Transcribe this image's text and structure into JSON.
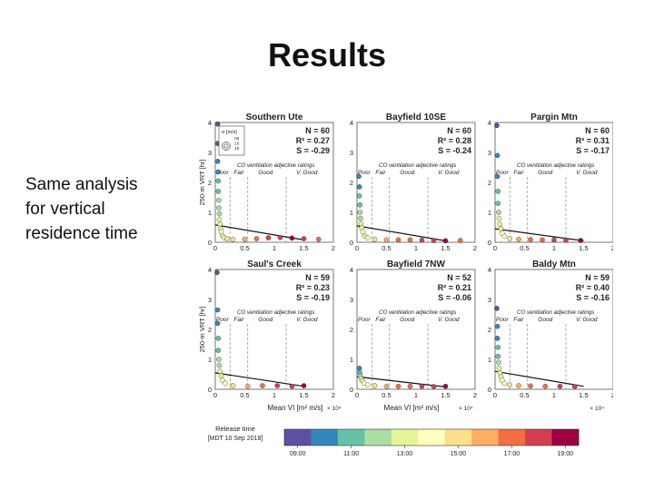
{
  "slide": {
    "title": "Results",
    "side_text": [
      "Same analysis",
      "for vertical",
      "residence time"
    ]
  },
  "size_legend": {
    "label": "σ [m/s]",
    "values": [
      ".05",
      ".10",
      ".15"
    ]
  },
  "rating_labels": [
    "Poor",
    "Fair",
    "Good",
    "V. Good"
  ],
  "chart_data": [
    {
      "type": "scatter",
      "title": "Southern Ute",
      "stats": [
        "N = 60",
        "R² = 0.27",
        "S = -0.29"
      ],
      "caption": "CO ventilation adjective ratings",
      "xlim": [
        0,
        2
      ],
      "ylim": [
        0,
        4
      ],
      "rating_thresholds": [
        0.25,
        0.55,
        1.2
      ],
      "x_ticks": [
        "0",
        "0.5",
        "1",
        "1.5",
        "2"
      ],
      "y_ticks": [
        "0",
        "1",
        "2",
        "3",
        "4"
      ],
      "ylabel": "250-m VRT [hr]",
      "trend": [
        [
          0,
          0.58
        ],
        [
          1.5,
          0.08
        ]
      ],
      "points": [
        [
          0.04,
          3.95,
          0
        ],
        [
          0.04,
          3.3,
          0
        ],
        [
          0.04,
          2.7,
          0.05
        ],
        [
          0.05,
          2.35,
          0.1
        ],
        [
          0.05,
          2.05,
          0.15
        ],
        [
          0.05,
          1.7,
          0.2
        ],
        [
          0.06,
          1.4,
          0.25
        ],
        [
          0.06,
          1.15,
          0.3
        ],
        [
          0.07,
          0.95,
          0.3
        ],
        [
          0.07,
          0.75,
          0.35
        ],
        [
          0.08,
          0.6,
          0.4
        ],
        [
          0.09,
          0.45,
          0.4
        ],
        [
          0.1,
          0.35,
          0.45
        ],
        [
          0.12,
          0.22,
          0.35
        ],
        [
          0.15,
          0.15,
          0.5
        ],
        [
          0.2,
          0.12,
          0.55
        ],
        [
          0.3,
          0.1,
          0.6
        ],
        [
          0.5,
          0.1,
          0.7
        ],
        [
          0.7,
          0.12,
          0.8
        ],
        [
          0.9,
          0.15,
          0.85
        ],
        [
          1.1,
          0.16,
          0.9
        ],
        [
          1.3,
          0.14,
          0.95
        ],
        [
          1.5,
          0.12,
          0.9
        ],
        [
          1.75,
          0.1,
          0.8
        ]
      ]
    },
    {
      "type": "scatter",
      "title": "Bayfield 10SE",
      "stats": [
        "N = 60",
        "R² = 0.28",
        "S = -0.24"
      ],
      "caption": "CO ventilation adjective ratings",
      "xlim": [
        0,
        2
      ],
      "ylim": [
        0,
        4
      ],
      "rating_thresholds": [
        0.25,
        0.55,
        1.2
      ],
      "x_ticks": [
        "0",
        "0.5",
        "1",
        "1.5",
        "2"
      ],
      "y_ticks": [
        "0",
        "1",
        "2",
        "3",
        "4"
      ],
      "ylabel": "",
      "trend": [
        [
          0,
          0.55
        ],
        [
          1.5,
          0.05
        ]
      ],
      "points": [
        [
          0.03,
          2.2,
          0.05
        ],
        [
          0.04,
          1.85,
          0.1
        ],
        [
          0.04,
          1.55,
          0.15
        ],
        [
          0.05,
          1.25,
          0.2
        ],
        [
          0.05,
          1.0,
          0.3
        ],
        [
          0.06,
          0.8,
          0.3
        ],
        [
          0.07,
          0.62,
          0.35
        ],
        [
          0.08,
          0.48,
          0.4
        ],
        [
          0.1,
          0.35,
          0.45
        ],
        [
          0.13,
          0.22,
          0.35
        ],
        [
          0.18,
          0.15,
          0.5
        ],
        [
          0.3,
          0.1,
          0.6
        ],
        [
          0.5,
          0.08,
          0.7
        ],
        [
          0.7,
          0.08,
          0.75
        ],
        [
          0.9,
          0.08,
          0.8
        ],
        [
          1.1,
          0.07,
          0.9
        ],
        [
          1.3,
          0.06,
          0.85
        ],
        [
          1.5,
          0.05,
          0.95
        ],
        [
          1.75,
          0.06,
          0.8
        ]
      ]
    },
    {
      "type": "scatter",
      "title": "Pargin Mtn",
      "stats": [
        "N = 60",
        "R² = 0.31",
        "S = -0.17"
      ],
      "caption": "CO ventilation adjective ratings",
      "xlim": [
        0,
        2
      ],
      "ylim": [
        0,
        4
      ],
      "rating_thresholds": [
        0.25,
        0.55,
        1.2
      ],
      "x_ticks": [
        "0",
        "0.5",
        "1",
        "1.5",
        "2"
      ],
      "y_ticks": [
        "0",
        "1",
        "2",
        "3",
        "4"
      ],
      "ylabel": "",
      "trend": [
        [
          0,
          0.45
        ],
        [
          1.5,
          0.05
        ]
      ],
      "points": [
        [
          0.03,
          3.9,
          0
        ],
        [
          0.04,
          2.9,
          0.05
        ],
        [
          0.04,
          2.2,
          0.1
        ],
        [
          0.05,
          1.7,
          0.15
        ],
        [
          0.05,
          1.3,
          0.2
        ],
        [
          0.06,
          1.0,
          0.3
        ],
        [
          0.07,
          0.8,
          0.35
        ],
        [
          0.08,
          0.6,
          0.4
        ],
        [
          0.1,
          0.45,
          0.4
        ],
        [
          0.12,
          0.3,
          0.45
        ],
        [
          0.16,
          0.2,
          0.5
        ],
        [
          0.25,
          0.12,
          0.6
        ],
        [
          0.4,
          0.1,
          0.7
        ],
        [
          0.6,
          0.09,
          0.75
        ],
        [
          0.8,
          0.08,
          0.8
        ],
        [
          1.0,
          0.08,
          0.85
        ],
        [
          1.2,
          0.07,
          0.9
        ],
        [
          1.45,
          0.06,
          0.95
        ]
      ]
    },
    {
      "type": "scatter",
      "title": "Saul's Creek",
      "stats": [
        "N = 59",
        "R² = 0.23",
        "S = -0.19"
      ],
      "caption": "CO ventilation adjective ratings",
      "xlim": [
        0,
        2
      ],
      "ylim": [
        0,
        4
      ],
      "rating_thresholds": [
        0.25,
        0.55,
        1.2
      ],
      "x_ticks": [
        "0",
        "0.5",
        "1",
        "1.5",
        "2"
      ],
      "y_ticks": [
        "0",
        "1",
        "2",
        "3",
        "4"
      ],
      "ylabel": "250-m VRT [hr]",
      "trend": [
        [
          0,
          0.55
        ],
        [
          1.5,
          0.1
        ]
      ],
      "points": [
        [
          0.03,
          3.9,
          0
        ],
        [
          0.04,
          2.65,
          0.05
        ],
        [
          0.04,
          2.2,
          0.1
        ],
        [
          0.05,
          1.7,
          0.15
        ],
        [
          0.05,
          1.3,
          0.2
        ],
        [
          0.06,
          1.0,
          0.3
        ],
        [
          0.07,
          0.8,
          0.3
        ],
        [
          0.08,
          0.6,
          0.35
        ],
        [
          0.1,
          0.45,
          0.4
        ],
        [
          0.12,
          0.3,
          0.45
        ],
        [
          0.17,
          0.2,
          0.5
        ],
        [
          0.3,
          0.12,
          0.6
        ],
        [
          0.55,
          0.1,
          0.7
        ],
        [
          0.8,
          0.12,
          0.8
        ],
        [
          1.05,
          0.12,
          0.85
        ],
        [
          1.3,
          0.1,
          0.9
        ],
        [
          1.5,
          0.12,
          0.95
        ]
      ]
    },
    {
      "type": "scatter",
      "title": "Bayfield 7NW",
      "stats": [
        "N = 52",
        "R² = 0.21",
        "S = -0.06"
      ],
      "caption": "CO ventilation adjective ratings",
      "xlim": [
        0,
        2
      ],
      "ylim": [
        0,
        4
      ],
      "rating_thresholds": [
        0.25,
        0.55,
        1.2
      ],
      "x_ticks": [
        "0",
        "0.5",
        "1",
        "1.5",
        "2"
      ],
      "y_ticks": [
        "0",
        "1",
        "2",
        "3",
        "4"
      ],
      "ylabel": "",
      "trend": [
        [
          0,
          0.42
        ],
        [
          1.5,
          0.08
        ]
      ],
      "points": [
        [
          0.04,
          0.7,
          0.1
        ],
        [
          0.05,
          0.55,
          0.2
        ],
        [
          0.06,
          0.42,
          0.3
        ],
        [
          0.07,
          0.35,
          0.35
        ],
        [
          0.09,
          0.28,
          0.4
        ],
        [
          0.12,
          0.2,
          0.45
        ],
        [
          0.18,
          0.15,
          0.5
        ],
        [
          0.3,
          0.12,
          0.55
        ],
        [
          0.5,
          0.1,
          0.65
        ],
        [
          0.7,
          0.1,
          0.75
        ],
        [
          0.9,
          0.1,
          0.8
        ],
        [
          1.1,
          0.1,
          0.85
        ],
        [
          1.3,
          0.09,
          0.9
        ],
        [
          1.5,
          0.1,
          0.95
        ]
      ]
    },
    {
      "type": "scatter",
      "title": "Baldy Mtn",
      "stats": [
        "N = 59",
        "R² = 0.40",
        "S = -0.16"
      ],
      "caption": "CO ventilation adjective ratings",
      "xlim": [
        0,
        2
      ],
      "ylim": [
        0,
        4
      ],
      "rating_thresholds": [
        0.25,
        0.55,
        1.2
      ],
      "x_ticks": [
        "0",
        "0.5",
        "1",
        "1.5",
        "2"
      ],
      "y_ticks": [
        "0",
        "1",
        "2",
        "3",
        "4"
      ],
      "ylabel": "",
      "trend": [
        [
          0,
          0.6
        ],
        [
          1.5,
          0.1
        ]
      ],
      "points": [
        [
          0.03,
          2.7,
          0
        ],
        [
          0.04,
          2.1,
          0.05
        ],
        [
          0.04,
          1.7,
          0.1
        ],
        [
          0.05,
          1.4,
          0.15
        ],
        [
          0.05,
          1.1,
          0.2
        ],
        [
          0.06,
          0.9,
          0.3
        ],
        [
          0.07,
          0.7,
          0.35
        ],
        [
          0.08,
          0.55,
          0.4
        ],
        [
          0.1,
          0.42,
          0.4
        ],
        [
          0.12,
          0.3,
          0.45
        ],
        [
          0.16,
          0.2,
          0.5
        ],
        [
          0.25,
          0.15,
          0.6
        ],
        [
          0.4,
          0.12,
          0.7
        ],
        [
          0.6,
          0.11,
          0.75
        ],
        [
          0.85,
          0.1,
          0.8
        ],
        [
          1.1,
          0.1,
          0.85
        ],
        [
          1.35,
          0.09,
          0.9
        ]
      ]
    }
  ],
  "x_axis": {
    "label": "Mean VI [m² m/s]",
    "exponent": "× 10⁴"
  },
  "colorbar": {
    "title": "Release time",
    "subtitle": "[MDT 10 Sep 2018]",
    "colors": [
      "#5e4fa2",
      "#3288bd",
      "#66c2a5",
      "#abdda4",
      "#e6f598",
      "#ffffbf",
      "#fee08b",
      "#fdae61",
      "#f46d43",
      "#d53e4f",
      "#9e0142"
    ],
    "tick_labels": [
      "09:00",
      "11:00",
      "13:00",
      "15:00",
      "17:00",
      "19:00"
    ]
  }
}
